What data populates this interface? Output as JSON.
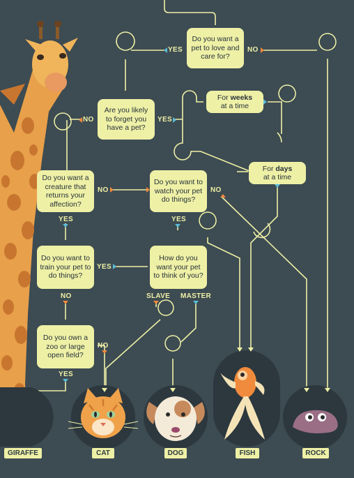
{
  "questions": {
    "q1": "Do you want a pet to love and care for?",
    "q2": "Are you likely to forget you have a pet?",
    "q3a": "For ",
    "q3b": "weeks",
    "q3c": " at a time",
    "q4a": "For ",
    "q4b": "days",
    "q4c": " at a time",
    "q5": "Do you want a creature that returns your affection?",
    "q6": "Do you want to watch your pet do things?",
    "q7": "Do you want to train your pet to do things?",
    "q8": "How do you want your pet to think of you?",
    "q9": "Do you own a zoo or large open field?"
  },
  "answers": {
    "yes": "YES",
    "no": "NO",
    "slave": "SLAVE",
    "master": "MASTER"
  },
  "results": {
    "giraffe": "GIRAFFE",
    "cat": "CAT",
    "dog": "DOG",
    "fish": "FISH",
    "rock": "ROCK"
  },
  "colors": {
    "background": "#3d4b52",
    "box": "#eef0a6",
    "line": "#eef0a6",
    "yes_arrow": "#5bbcd6",
    "no_arrow": "#f08a3c"
  }
}
